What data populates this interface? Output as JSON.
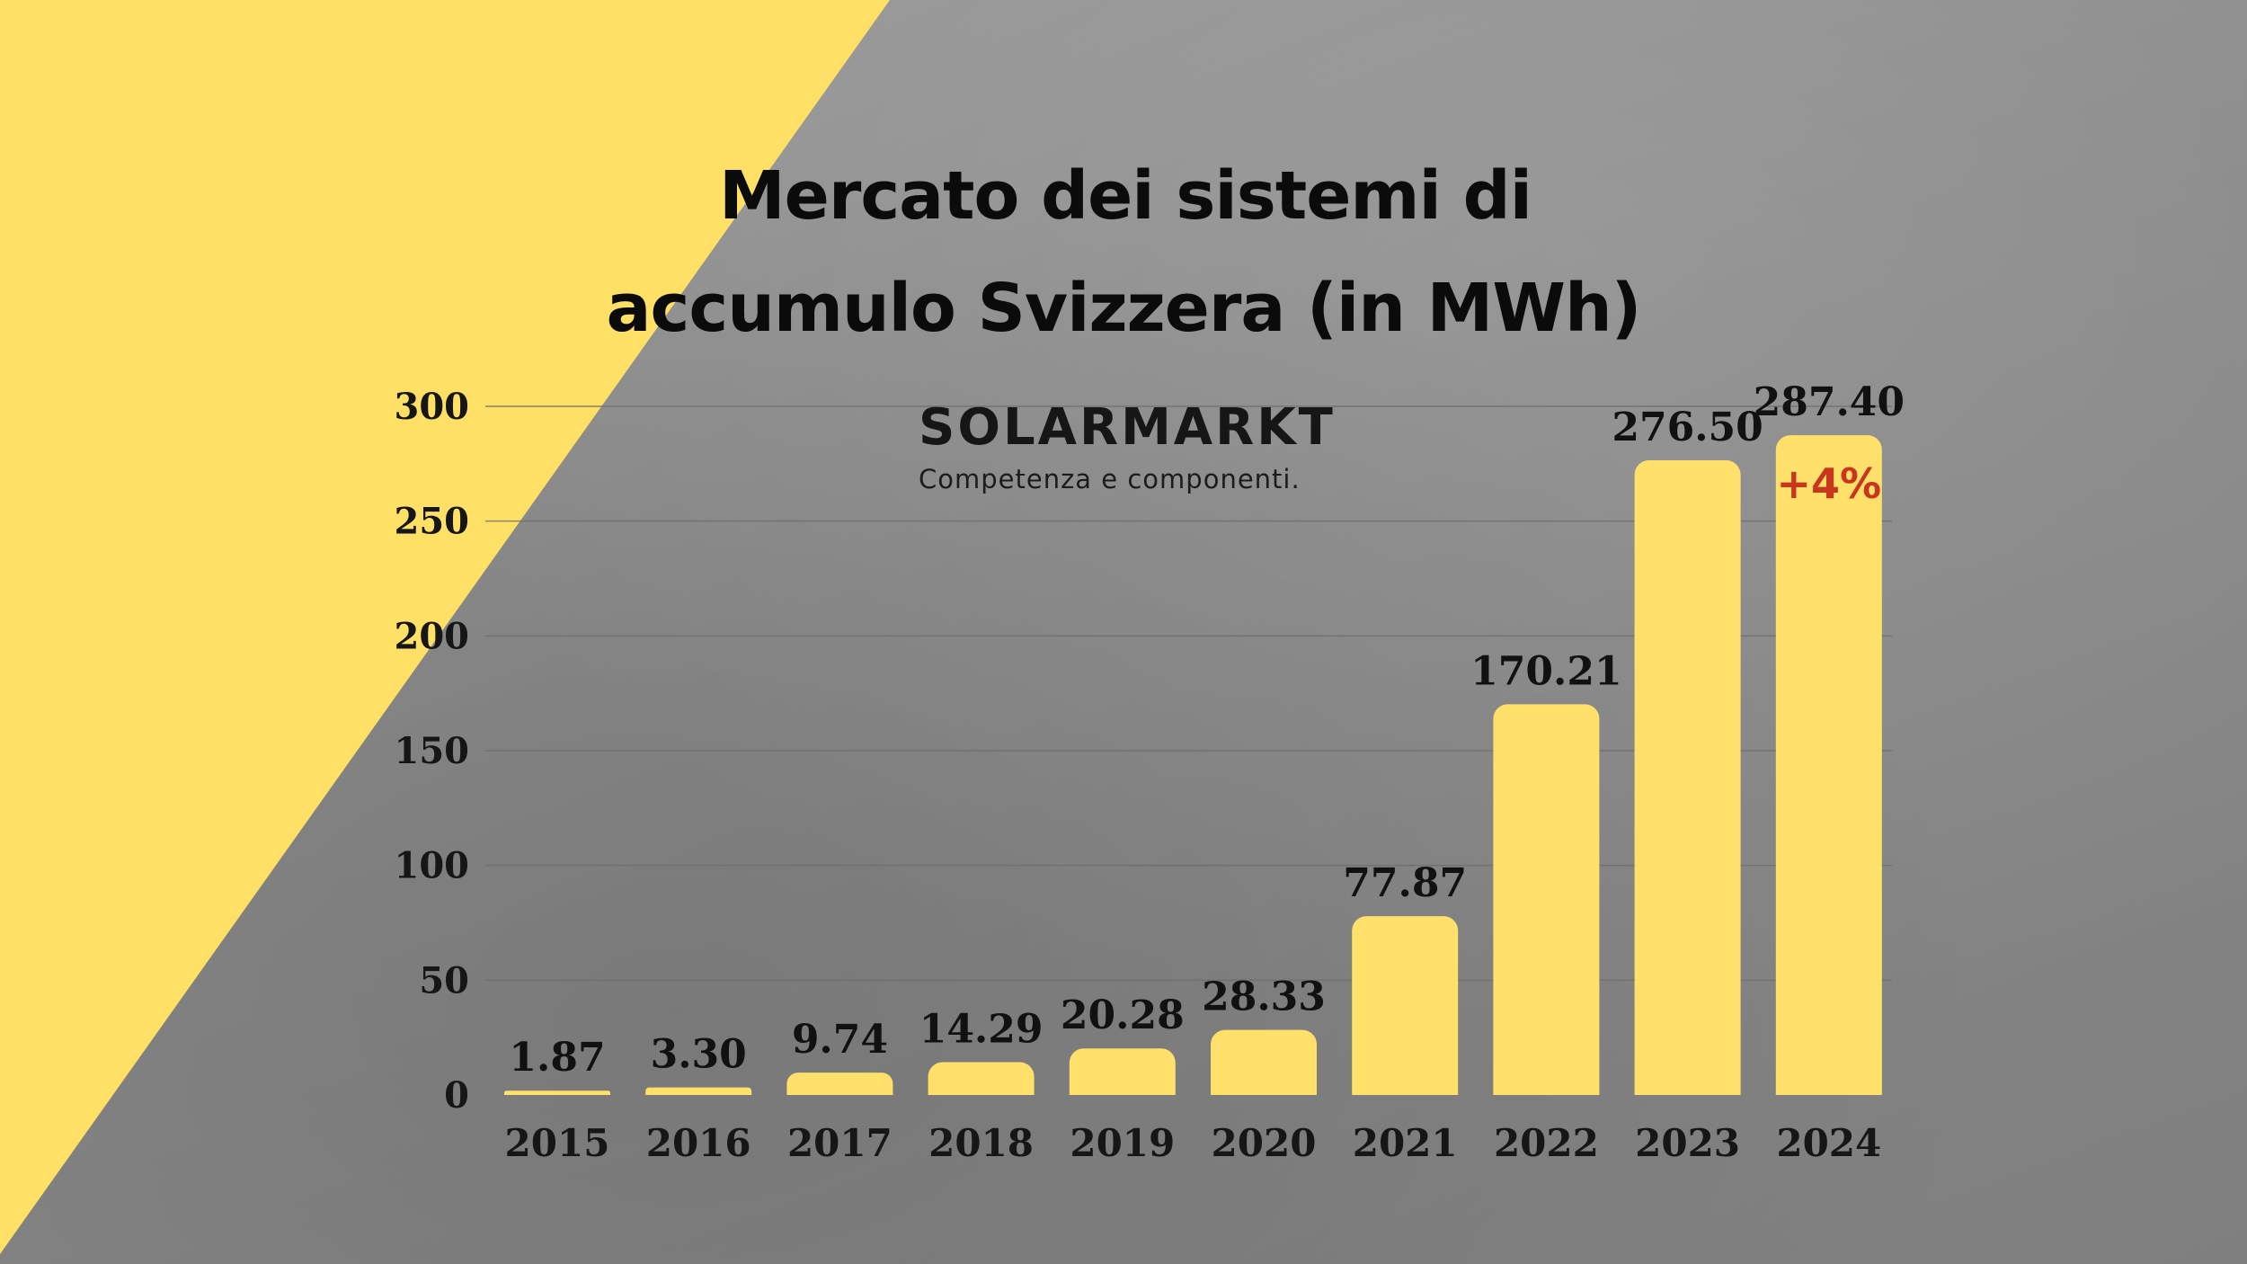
{
  "colors": {
    "accent_yellow": "#ffe066",
    "bar_fill": "#ffe06b",
    "growth_red": "#c8361e",
    "text_dark": "#111111"
  },
  "title": {
    "line1": "Mercato dei sistemi di",
    "line2": "accumulo Svizzera (in MWh)"
  },
  "logo": {
    "name": "SOLARMARKT",
    "tagline": "Competenza e componenti."
  },
  "chart_data": {
    "type": "bar",
    "title": "Mercato dei sistemi di accumulo Svizzera (in MWh)",
    "xlabel": "",
    "ylabel": "",
    "ylim": [
      0,
      300
    ],
    "yticks": [
      0,
      50,
      100,
      150,
      200,
      250,
      300
    ],
    "grid": true,
    "categories": [
      "2015",
      "2016",
      "2017",
      "2018",
      "2019",
      "2020",
      "2021",
      "2022",
      "2023",
      "2024"
    ],
    "values": [
      1.87,
      3.3,
      9.74,
      14.29,
      20.28,
      28.33,
      77.87,
      170.21,
      276.5,
      287.4
    ],
    "value_labels": [
      "1.87",
      "3.30",
      "9.74",
      "14.29",
      "20.28",
      "28.33",
      "77.87",
      "170.21",
      "276.50",
      "287.40"
    ],
    "annotations": [
      {
        "category": "2024",
        "text": "+4%"
      }
    ]
  }
}
